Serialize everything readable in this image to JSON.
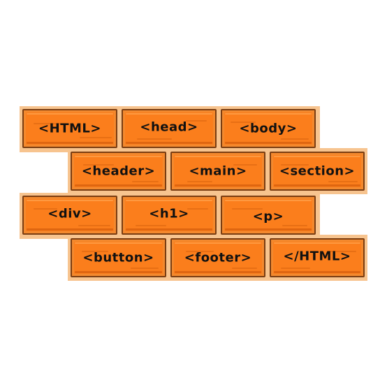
{
  "wall": {
    "rows": [
      [
        "<HTML>",
        "<head>",
        "<body>"
      ],
      [
        "<header>",
        "<main>",
        "<section>"
      ],
      [
        "<div>",
        "<h1>",
        "<p>"
      ],
      [
        "<button>",
        "<footer>",
        "</HTML>"
      ]
    ]
  },
  "colors": {
    "brick": "#fb7e1c",
    "brick_border": "#7a3d12",
    "mortar": "#f7c48f",
    "text": "#111111"
  }
}
